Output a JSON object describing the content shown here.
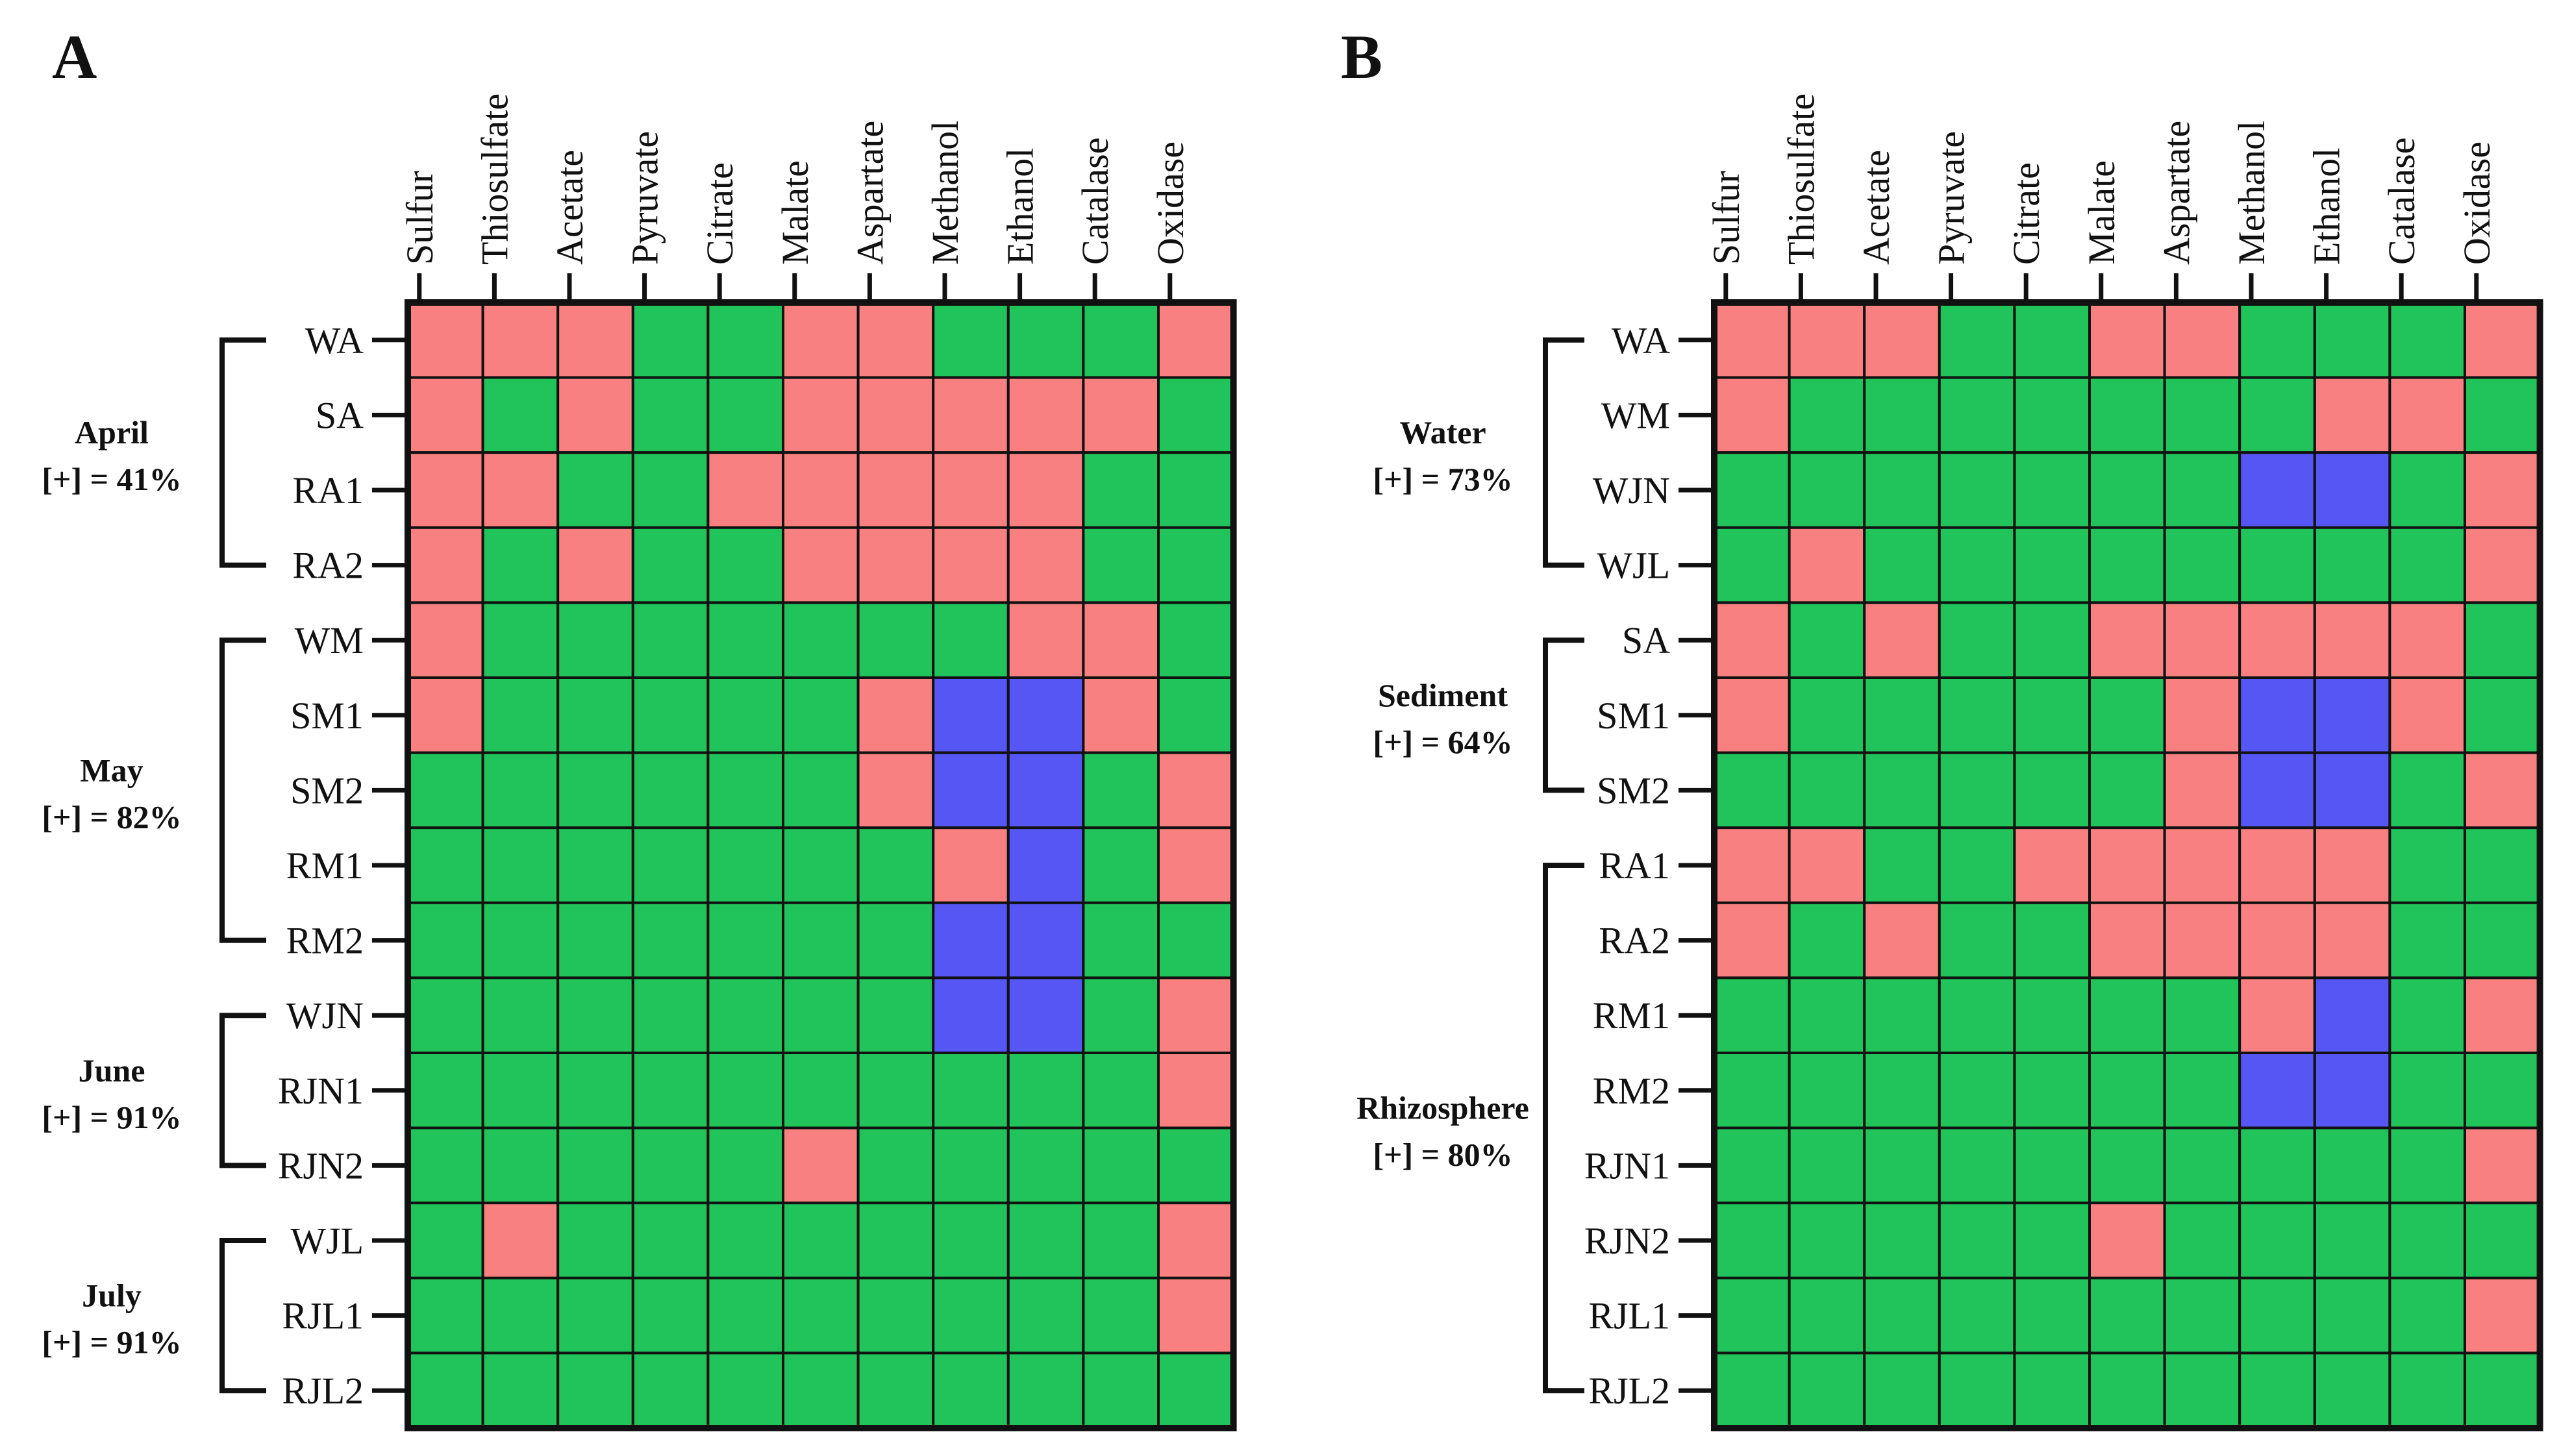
{
  "chart_data": [
    {
      "type": "heatmap",
      "panel_label": "A",
      "columns": [
        "Sulfur",
        "Thiosulfate",
        "Acetate",
        "Pyruvate",
        "Citrate",
        "Malate",
        "Aspartate",
        "Methanol",
        "Ethanol",
        "Catalase",
        "Oxidase"
      ],
      "rows": [
        "WA",
        "SA",
        "RA1",
        "RA2",
        "WM",
        "SM1",
        "SM2",
        "RM1",
        "RM2",
        "WJN",
        "RJN1",
        "RJN2",
        "WJL",
        "RJL1",
        "RJL2"
      ],
      "groups": [
        {
          "name": "April",
          "stat": "[+] = 41%",
          "first_row": 0,
          "last_row": 3
        },
        {
          "name": "May",
          "stat": "[+] = 82%",
          "first_row": 4,
          "last_row": 8
        },
        {
          "name": "June",
          "stat": "[+] = 91%",
          "first_row": 9,
          "last_row": 11
        },
        {
          "name": "July",
          "stat": "[+] = 91%",
          "first_row": 12,
          "last_row": 14
        }
      ],
      "states": [
        "RRRGGRRGGGR",
        "RGRGGRRRRRG",
        "RRGGRRRRRGG",
        "RGRGGRRRRGG",
        "RGGGGGGGRRG",
        "RGGGGGRBBRG",
        "GGGGGGRBBGR",
        "GGGGGGGRBGR",
        "GGGGGGGBBGG",
        "GGGGGGGBBGR",
        "GGGGGGGGGGR",
        "GGGGGRGGGGG",
        "GRGGGGGGGGR",
        "GGGGGGGGGGR",
        "GGGGGGGGGGG"
      ],
      "colors": {
        "G": "#21c45a",
        "R": "#f88080",
        "B": "#5656f5"
      }
    },
    {
      "type": "heatmap",
      "panel_label": "B",
      "columns": [
        "Sulfur",
        "Thiosulfate",
        "Acetate",
        "Pyruvate",
        "Citrate",
        "Malate",
        "Aspartate",
        "Methanol",
        "Ethanol",
        "Catalase",
        "Oxidase"
      ],
      "rows": [
        "WA",
        "WM",
        "WJN",
        "WJL",
        "SA",
        "SM1",
        "SM2",
        "RA1",
        "RA2",
        "RM1",
        "RM2",
        "RJN1",
        "RJN2",
        "RJL1",
        "RJL2"
      ],
      "groups": [
        {
          "name": "Water",
          "stat": "[+] = 73%",
          "first_row": 0,
          "last_row": 3
        },
        {
          "name": "Sediment",
          "stat": "[+] = 64%",
          "first_row": 4,
          "last_row": 6
        },
        {
          "name": "Rhizosphere",
          "stat": "[+] = 80%",
          "first_row": 7,
          "last_row": 14
        }
      ],
      "states": [
        "RRRGGRRGGGR",
        "RGGGGGGGRRG",
        "GGGGGGGBBGR",
        "GRGGGGGGGGR",
        "RGRGGRRRRRG",
        "RGGGGGRBBRG",
        "GGGGGGRBBGR",
        "RRGGRRRRRGG",
        "RGRGGRRRRGG",
        "GGGGGGGRBGR",
        "GGGGGGGBBGG",
        "GGGGGGGGGGR",
        "GGGGGRGGGGG",
        "GGGGGGGGGGR",
        "GGGGGGGGGGG"
      ],
      "colors": {
        "G": "#21c45a",
        "R": "#f88080",
        "B": "#5656f5"
      }
    }
  ]
}
